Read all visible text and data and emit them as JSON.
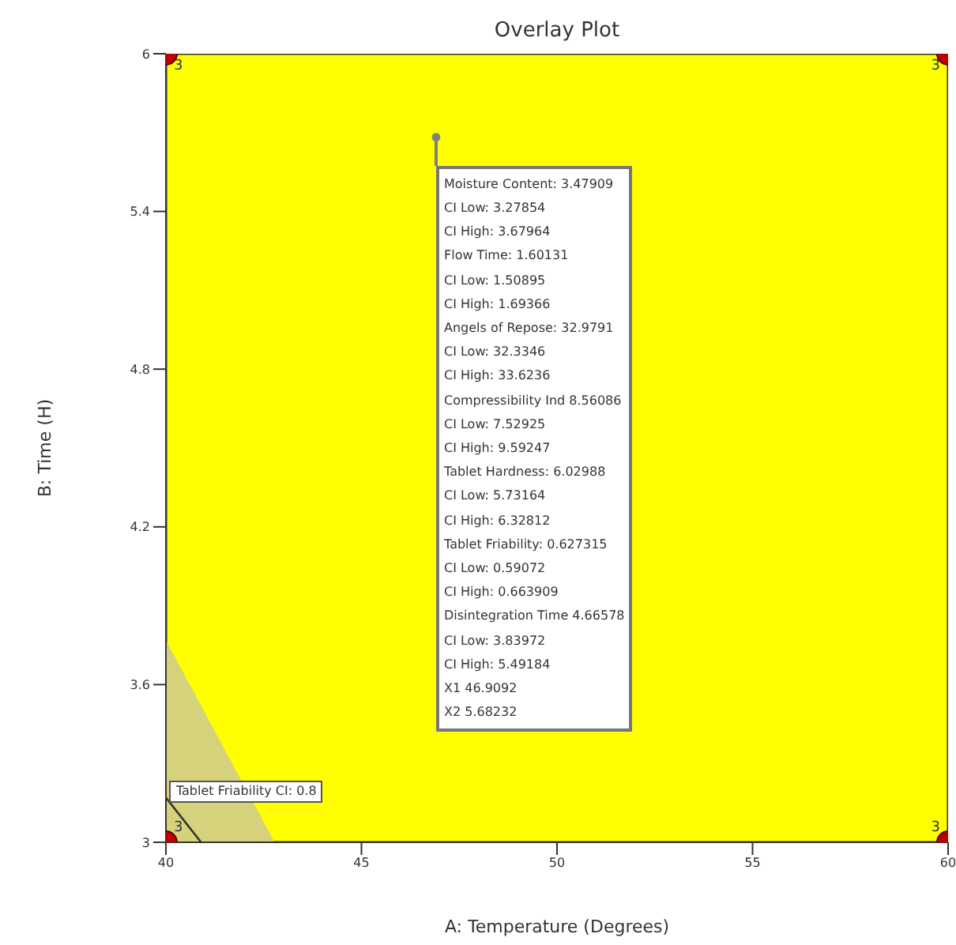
{
  "chart_data": {
    "type": "scatter",
    "title": "Overlay Plot",
    "xlabel": "A: Temperature (Degrees)",
    "ylabel": "B: Time (H)",
    "xlim": [
      40,
      60
    ],
    "xticks": [
      40,
      45,
      50,
      55,
      60
    ],
    "ylim": [
      3,
      6
    ],
    "yticks": [
      3,
      3.6,
      4.2,
      4.8,
      5.4,
      6
    ],
    "grid": false,
    "bands": [
      {
        "axis": "x",
        "from": 40,
        "to": 60,
        "color": "#ffff00"
      }
    ],
    "series": [
      {
        "type": "area",
        "color": "#d6d27c",
        "x": [
          40,
          42.75
        ],
        "values": [
          3.76,
          3
        ]
      },
      {
        "type": "line",
        "color": "#333333",
        "x": [
          40,
          40.9
        ],
        "values": [
          3.17,
          3
        ]
      },
      {
        "color": "#c00000",
        "marker": "circle",
        "x": [
          40,
          40,
          60,
          60
        ],
        "values": [
          3,
          6,
          3,
          6
        ]
      },
      {
        "color": "#808080",
        "marker": "circle",
        "x": [
          46.9092
        ],
        "values": [
          5.68232
        ]
      }
    ],
    "annotations": [
      {
        "text": "Tablet Friability CI: 0.8",
        "x": 40.1,
        "y": 3.19
      },
      {
        "text": "3",
        "x": 40,
        "y": 3
      },
      {
        "text": "3",
        "x": 40,
        "y": 6
      },
      {
        "text": "3",
        "x": 60,
        "y": 3
      },
      {
        "text": "3",
        "x": 60,
        "y": 6
      },
      "Moisture Content: 3.47909",
      "CI Low: 3.27854",
      "CI High: 3.67964",
      "Flow Time: 1.60131",
      "CI Low: 1.50895",
      "CI High: 1.69366",
      "Angels of Repose: 32.9791",
      "CI Low: 32.3346",
      "CI High: 33.6236",
      "Compressibility Ind 8.56086",
      "CI Low: 7.52925",
      "CI High: 9.59247",
      "Tablet Hardness: 6.02988",
      "CI Low: 5.73164",
      "CI High: 6.32812",
      "Tablet Friability: 0.627315",
      "CI Low: 0.59072",
      "CI High: 0.663909",
      "Disintegration Time 4.66578",
      "CI Low: 3.83972",
      "CI High: 5.49184",
      "X1 46.9092",
      "X2 5.68232"
    ]
  }
}
